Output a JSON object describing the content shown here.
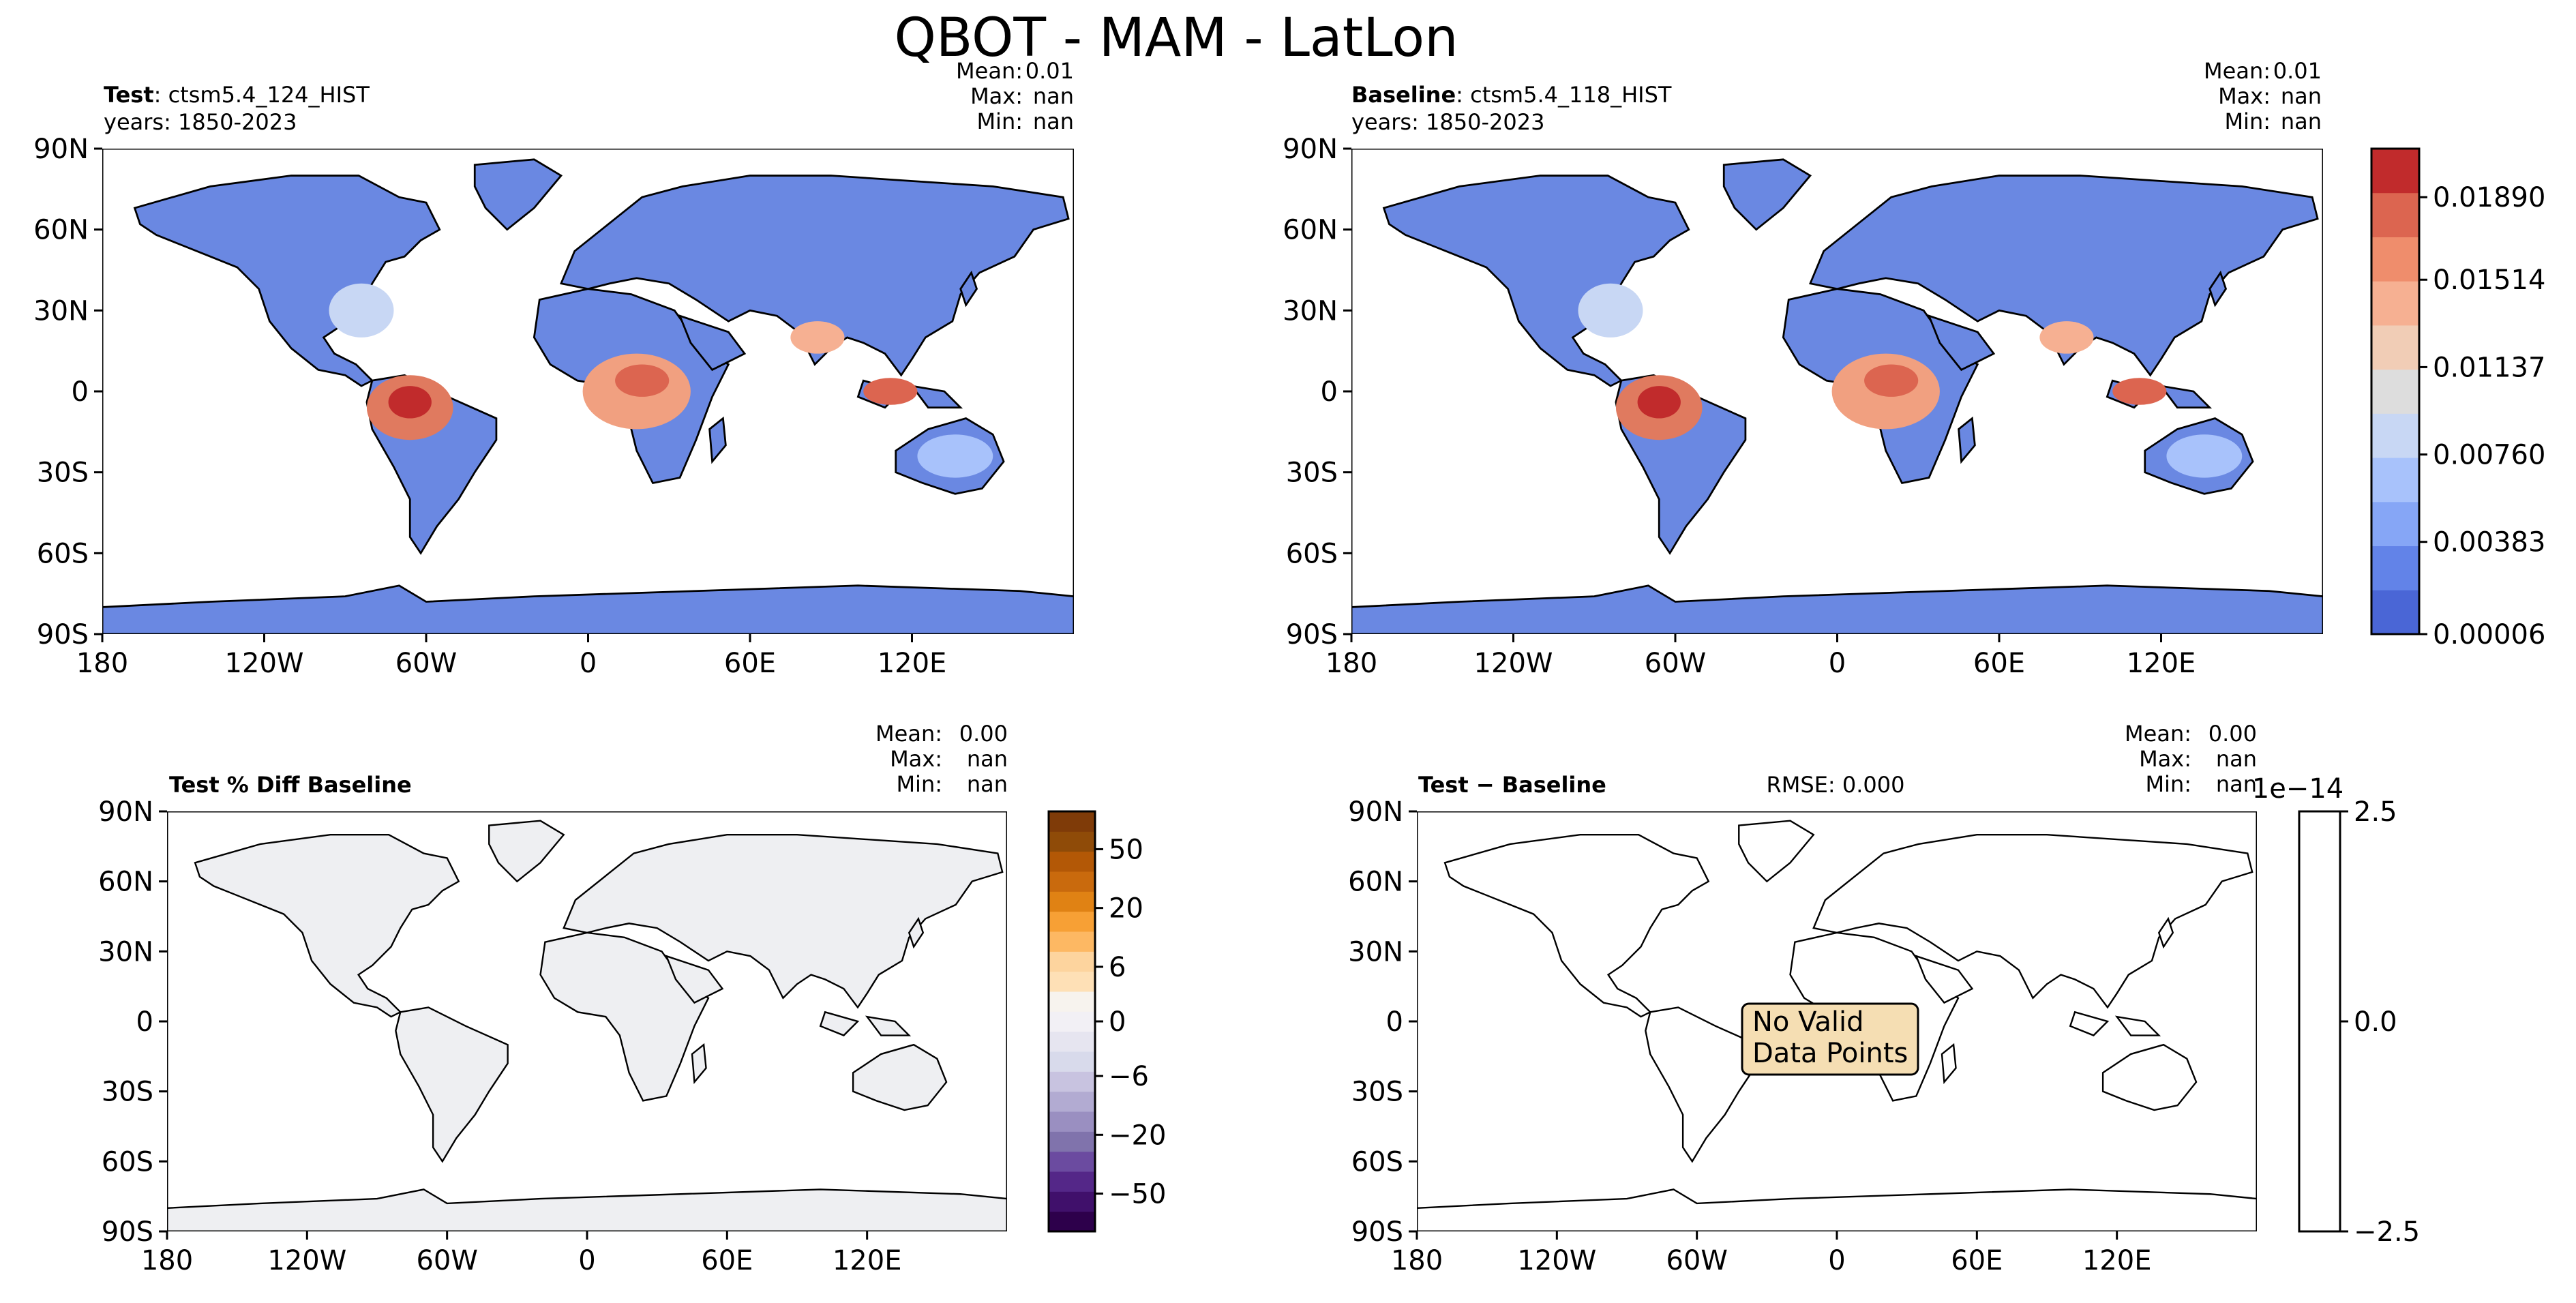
{
  "title": "QBOT - MAM - LatLon",
  "x_ticks": [
    "180",
    "120W",
    "60W",
    "0",
    "60E",
    "120E"
  ],
  "y_ticks": [
    "90N",
    "60N",
    "30N",
    "0",
    "30S",
    "60S",
    "90S"
  ],
  "panels": {
    "test": {
      "label_bold": "Test",
      "label_rest": ": ctsm5.4_124_HIST",
      "years": "years: 1850-2023",
      "stats": {
        "mean_label": "Mean:",
        "mean": "0.01",
        "max_label": "Max:",
        "max": "nan",
        "min_label": "Min:",
        "min": "nan"
      }
    },
    "baseline": {
      "label_bold": "Baseline",
      "label_rest": ": ctsm5.4_118_HIST",
      "years": "years: 1850-2023",
      "stats": {
        "mean_label": "Mean:",
        "mean": "0.01",
        "max_label": "Max:",
        "max": "nan",
        "min_label": "Min:",
        "min": "nan"
      }
    },
    "pct_diff": {
      "label_bold": "Test % Diff Baseline",
      "stats": {
        "mean_label": "Mean:",
        "mean": "0.00",
        "max_label": "Max:",
        "max": "nan",
        "min_label": "Min:",
        "min": "nan"
      }
    },
    "diff": {
      "label_bold": "Test − Baseline",
      "rmse": "RMSE: 0.000",
      "nodata_line1": "No Valid",
      "nodata_line2": "Data Points",
      "stats": {
        "mean_label": "Mean:",
        "mean": "0.00",
        "max_label": "Max:",
        "max": "nan",
        "min_label": "Min:",
        "min": "nan"
      }
    }
  },
  "colorbars": {
    "main": {
      "ticks": [
        "0.01890",
        "0.01514",
        "0.01137",
        "0.00760",
        "0.00383",
        "0.00006"
      ],
      "colors": [
        "#4a66d6",
        "#6283e8",
        "#86a6f6",
        "#a8c2fb",
        "#c8d7f4",
        "#dddddd",
        "#f1cdb6",
        "#f6b092",
        "#ef8d6c",
        "#dc6550",
        "#c12b2c"
      ]
    },
    "pct": {
      "ticks": [
        "50",
        "20",
        "6",
        "0",
        "−6",
        "−20",
        "−50"
      ],
      "colors": [
        "#2d004b",
        "#40106b",
        "#542788",
        "#6b4ba0",
        "#8073ac",
        "#9a8fc1",
        "#b2abd2",
        "#c8c3e0",
        "#d8daeb",
        "#e6e5f0",
        "#f2f0f5",
        "#f7f3ee",
        "#fee0b6",
        "#fdd49e",
        "#fdb863",
        "#f7a035",
        "#e08214",
        "#c96a0d",
        "#b35806",
        "#8f4b08",
        "#7f3b08"
      ]
    },
    "diff": {
      "ticks": [
        "2.5",
        "0.0",
        "−2.5"
      ],
      "exponent": "1e−14"
    }
  },
  "colors": {
    "land_gray": "#eeeff2",
    "nodata_box": "#f5deb3",
    "axis": "#000000"
  }
}
